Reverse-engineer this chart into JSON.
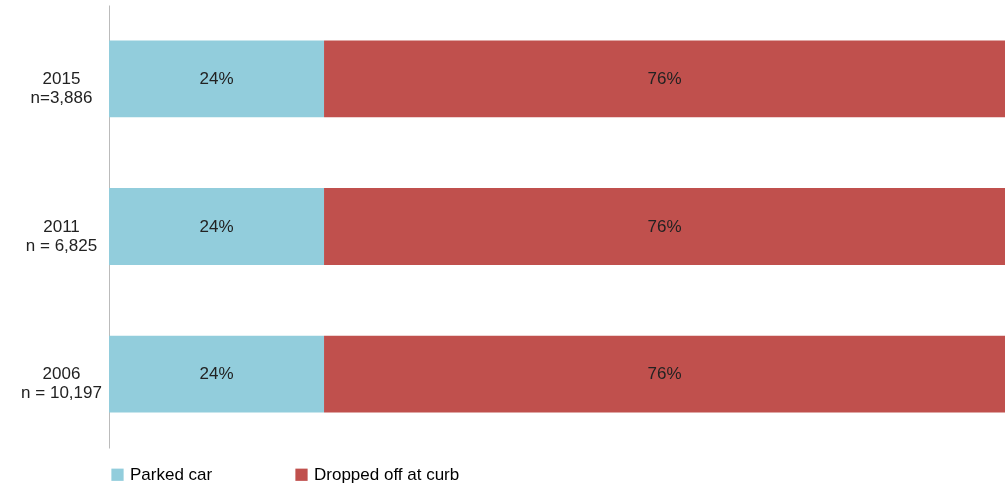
{
  "chart_data": {
    "type": "bar",
    "orientation": "horizontal",
    "stacked": true,
    "categories": [
      "2015\nn=3,886",
      "2011\nn = 6,825",
      "2006\nn = 10,197"
    ],
    "series": [
      {
        "name": "Parked car",
        "color": "#92cddc",
        "values": [
          24,
          24,
          24
        ],
        "value_labels": [
          "24%",
          "24%",
          "24%"
        ]
      },
      {
        "name": "Dropped off at curb",
        "color": "#c0504d",
        "values": [
          76,
          76,
          76
        ],
        "value_labels": [
          "76%",
          "76%",
          "76%"
        ]
      }
    ],
    "tick_labels": "y",
    "legend": "bottom"
  }
}
